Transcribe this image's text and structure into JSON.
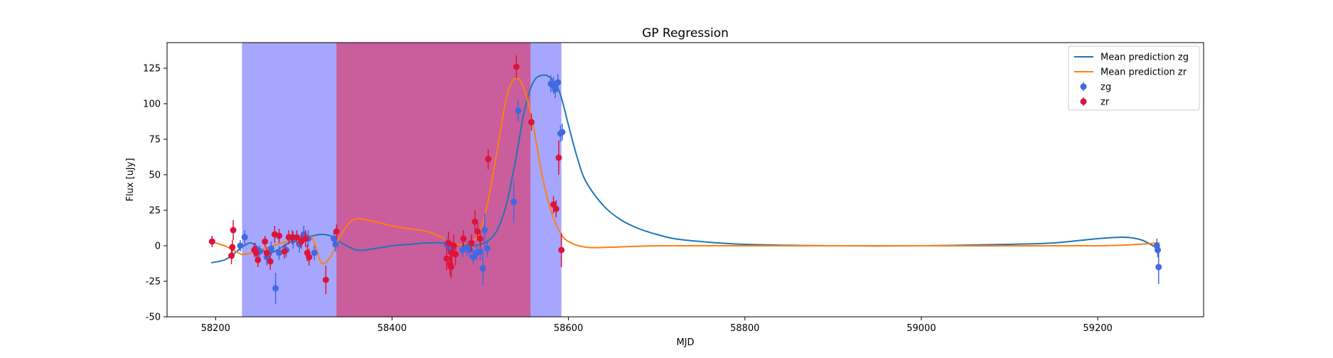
{
  "chart_data": {
    "type": "scatter",
    "title": "GP Regression",
    "xlabel": "MJD",
    "ylabel": "Flux [uJy]",
    "xlim": [
      58145,
      59320
    ],
    "ylim": [
      -50,
      143
    ],
    "xticks": [
      58200,
      58400,
      58600,
      58800,
      59000,
      59200
    ],
    "yticks": [
      -50,
      -25,
      0,
      25,
      50,
      75,
      100,
      125
    ],
    "grid": false,
    "legend_position": "top-right",
    "colors": {
      "zg_points": "#4169e1",
      "zr_points": "#dc143c",
      "mean_zg": "#1f77b4",
      "mean_zr": "#ff7f0e",
      "span_blue": "#6a6aff",
      "span_red": "#d0508a"
    },
    "shaded_regions": [
      {
        "x0": 58230,
        "x1": 58592,
        "color": "blue"
      },
      {
        "x0": 58337,
        "x1": 58557,
        "color": "red"
      }
    ],
    "series": [
      {
        "name": "Mean prediction zg",
        "kind": "line",
        "color": "#1f77b4",
        "x": [
          58195,
          58210,
          58220,
          58230,
          58240,
          58250,
          58260,
          58270,
          58280,
          58290,
          58300,
          58310,
          58320,
          58330,
          58340,
          58360,
          58380,
          58400,
          58420,
          58440,
          58460,
          58480,
          58490,
          58500,
          58510,
          58520,
          58530,
          58540,
          58550,
          58560,
          58570,
          58580,
          58590,
          58600,
          58610,
          58620,
          58640,
          58660,
          58680,
          58700,
          58720,
          58750,
          58800,
          58900,
          59000,
          59100,
          59150,
          59200,
          59230,
          59250,
          59268
        ],
        "y": [
          -12,
          -10,
          -6,
          -1,
          2,
          -2,
          -5,
          -3,
          1,
          4,
          6,
          7,
          8,
          7,
          3,
          -3,
          -2,
          0,
          1,
          2,
          2,
          1,
          0,
          1,
          4,
          12,
          30,
          60,
          95,
          115,
          120,
          118,
          108,
          85,
          62,
          45,
          28,
          18,
          12,
          8,
          5,
          3,
          1,
          0,
          0,
          1,
          2,
          5,
          6,
          4,
          -2
        ]
      },
      {
        "name": "Mean prediction zr",
        "kind": "line",
        "color": "#ff7f0e",
        "x": [
          58195,
          58210,
          58220,
          58230,
          58240,
          58250,
          58260,
          58270,
          58280,
          58290,
          58300,
          58310,
          58320,
          58330,
          58340,
          58350,
          58360,
          58380,
          58400,
          58420,
          58440,
          58460,
          58470,
          58480,
          58490,
          58500,
          58510,
          58520,
          58530,
          58540,
          58550,
          58560,
          58570,
          58580,
          58590,
          58600,
          58620,
          58650,
          58700,
          58800,
          59000,
          59200,
          59270
        ],
        "y": [
          3,
          0,
          -3,
          -6,
          -5,
          -3,
          -1,
          1,
          3,
          5,
          7,
          5,
          -12,
          -8,
          5,
          15,
          19,
          17,
          14,
          12,
          10,
          5,
          2,
          1,
          3,
          10,
          35,
          70,
          105,
          118,
          110,
          85,
          50,
          25,
          10,
          3,
          -1,
          -1,
          0,
          0,
          0,
          0,
          2
        ]
      },
      {
        "name": "zg",
        "kind": "errorbar",
        "color": "#4169e1",
        "x": [
          58228,
          58233,
          58245,
          58250,
          58258,
          58263,
          58268,
          58272,
          58280,
          58288,
          58295,
          58300,
          58305,
          58312,
          58334,
          58336,
          58462,
          58466,
          58480,
          58485,
          58488,
          58492,
          58496,
          58500,
          58503,
          58505,
          58508,
          58538,
          58543,
          58580,
          58583,
          58585,
          58588,
          58591,
          58593,
          59267,
          59268,
          59269
        ],
        "y": [
          0,
          6,
          -2,
          -4,
          -8,
          -2,
          -30,
          -5,
          -3,
          4,
          1,
          8,
          5,
          -5,
          5,
          1,
          1,
          -2,
          -3,
          -2,
          -3,
          -8,
          -5,
          -4,
          -16,
          11,
          -2,
          31,
          95,
          114,
          113,
          110,
          115,
          79,
          80,
          0,
          -3,
          -15
        ],
        "yerr": [
          4,
          5,
          4,
          4,
          6,
          5,
          11,
          5,
          5,
          6,
          6,
          6,
          6,
          5,
          6,
          5,
          5,
          4,
          5,
          5,
          5,
          5,
          5,
          6,
          12,
          12,
          6,
          15,
          8,
          6,
          6,
          6,
          6,
          6,
          6,
          5,
          5,
          12
        ]
      },
      {
        "name": "zr",
        "kind": "errorbar",
        "color": "#dc143c",
        "x": [
          58196,
          58218,
          58219,
          58220,
          58244,
          58246,
          58248,
          58256,
          58258,
          58262,
          58267,
          58272,
          58278,
          58283,
          58287,
          58292,
          58297,
          58302,
          58304,
          58306,
          58325,
          58337,
          58462,
          58464,
          58466,
          58467,
          58468,
          58470,
          58472,
          58481,
          58490,
          58494,
          58497,
          58500,
          58509,
          58541,
          58558,
          58583,
          58586,
          58589,
          58592
        ],
        "y": [
          3,
          -7,
          -1,
          11,
          -3,
          -5,
          -10,
          3,
          -5,
          -11,
          8,
          7,
          -4,
          6,
          6,
          6,
          3,
          5,
          -5,
          -8,
          -24,
          10,
          -9,
          2,
          -13,
          -15,
          -5,
          0,
          -6,
          5,
          2,
          17,
          10,
          5,
          61,
          126,
          87,
          29,
          26,
          62,
          -3
        ],
        "yerr": [
          4,
          6,
          5,
          7,
          5,
          5,
          5,
          4,
          4,
          6,
          6,
          5,
          5,
          5,
          5,
          5,
          5,
          6,
          6,
          6,
          10,
          5,
          8,
          8,
          8,
          8,
          8,
          8,
          8,
          6,
          6,
          8,
          6,
          6,
          7,
          8,
          6,
          6,
          6,
          12,
          12
        ]
      }
    ]
  }
}
